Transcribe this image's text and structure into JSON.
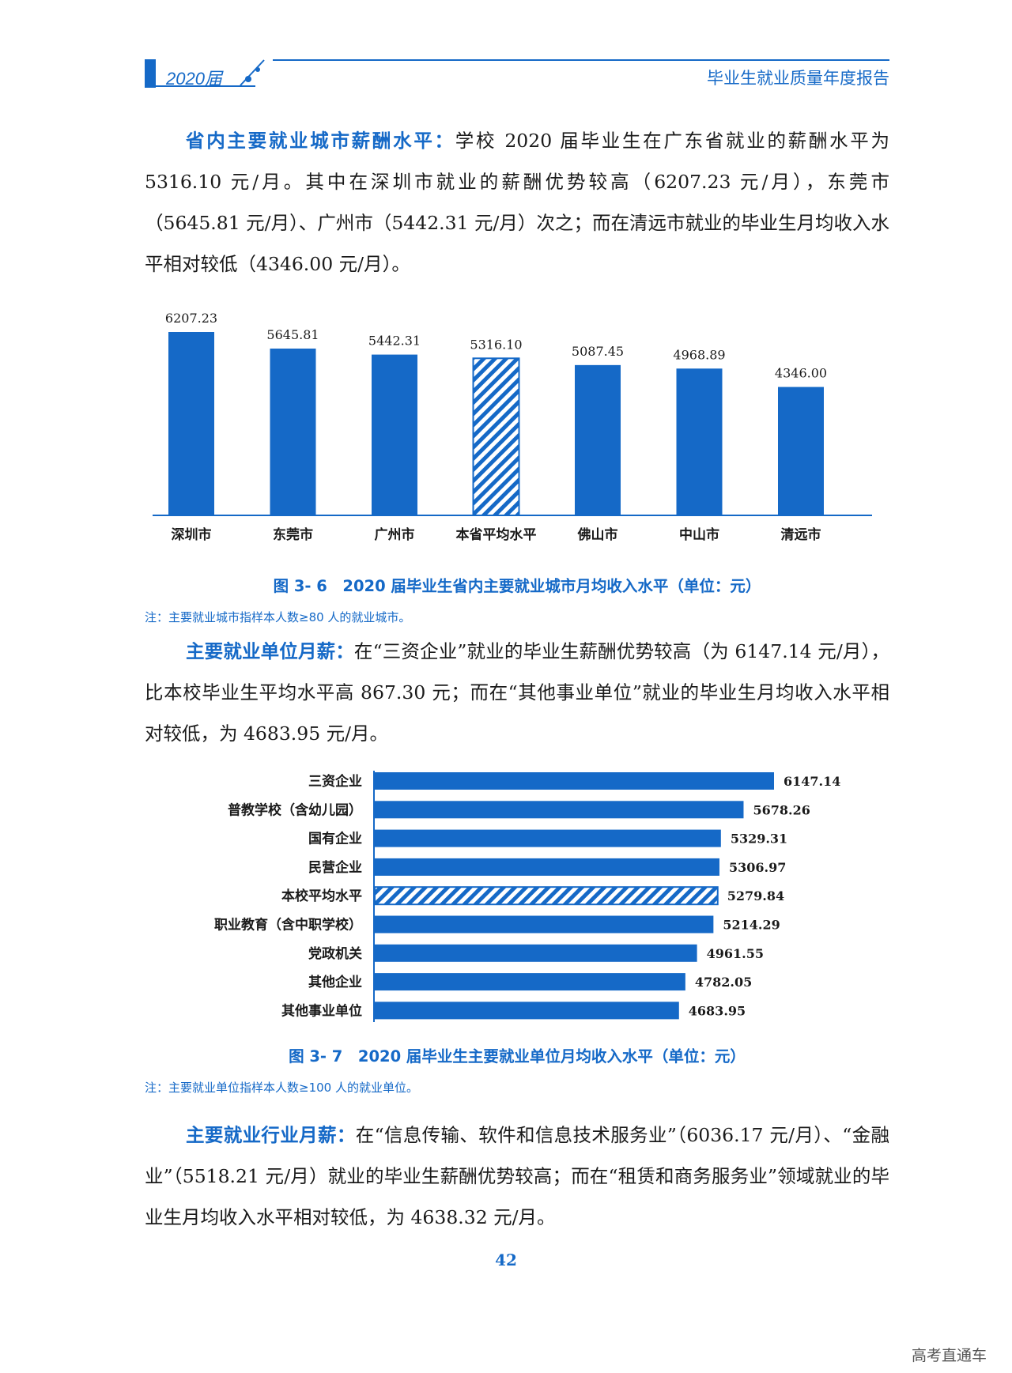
{
  "header": {
    "year": "2020届",
    "title": "毕业生就业质量年度报告"
  },
  "sections": [
    {
      "lead": "省内主要就业城市薪酬水平：",
      "text": "学校 2020 届毕业生在广东省就业的薪酬水平为 5316.10 元/月。其中在深圳市就业的薪酬优势较高（6207.23 元/月），东莞市（5645.81 元/月）、广州市（5442.31 元/月）次之；而在清远市就业的毕业生月均收入水平相对较低（4346.00 元/月）。"
    },
    {
      "lead": "主要就业单位月薪：",
      "text": "在“三资企业”就业的毕业生薪酬优势较高（为 6147.14 元/月），比本校毕业生平均水平高 867.30 元；而在“其他事业单位”就业的毕业生月均收入水平相对较低，为 4683.95 元/月。"
    },
    {
      "lead": "主要就业行业月薪：",
      "text": "在“信息传输、软件和信息技术服务业”（6036.17 元/月）、“金融业”（5518.21 元/月）就业的毕业生薪酬优势较高；而在“租赁和商务服务业”领域就业的毕业生月均收入水平相对较低，为 4638.32 元/月。"
    }
  ],
  "figures": [
    {
      "caption": "图 3- 6　2020 届毕业生省内主要就业城市月均收入水平（单位：元）",
      "note": "注：主要就业城市指样本人数≥80 人的就业城市。"
    },
    {
      "caption": "图 3- 7　2020 届毕业生主要就业单位月均收入水平（单位：元）",
      "note": "注：主要就业单位指样本人数≥100 人的就业单位。"
    }
  ],
  "chart_data": [
    {
      "type": "bar",
      "orientation": "vertical",
      "categories": [
        "深圳市",
        "东莞市",
        "广州市",
        "本省平均水平",
        "佛山市",
        "中山市",
        "清远市"
      ],
      "values": [
        6207.23,
        5645.81,
        5442.31,
        5316.1,
        5087.45,
        4968.89,
        4346.0
      ],
      "labels": [
        "6207.23",
        "5645.81",
        "5442.31",
        "5316.10",
        "5087.45",
        "4968.89",
        "4346.00"
      ],
      "highlight_index": 3,
      "bar_color": "#1569c7",
      "grid": false
    },
    {
      "type": "bar",
      "orientation": "horizontal",
      "categories": [
        "三资企业",
        "普教学校（含幼儿园）",
        "国有企业",
        "民营企业",
        "本校平均水平",
        "职业教育（含中职学校）",
        "党政机关",
        "其他企业",
        "其他事业单位"
      ],
      "values": [
        6147.14,
        5678.26,
        5329.31,
        5306.97,
        5279.84,
        5214.29,
        4961.55,
        4782.05,
        4683.95
      ],
      "labels": [
        "6147.14",
        "5678.26",
        "5329.31",
        "5306.97",
        "5279.84",
        "5214.29",
        "4961.55",
        "4782.05",
        "4683.95"
      ],
      "highlight_index": 4,
      "bar_color": "#1569c7",
      "grid": false
    }
  ],
  "page_number": "42",
  "watermark": "高考直通车"
}
